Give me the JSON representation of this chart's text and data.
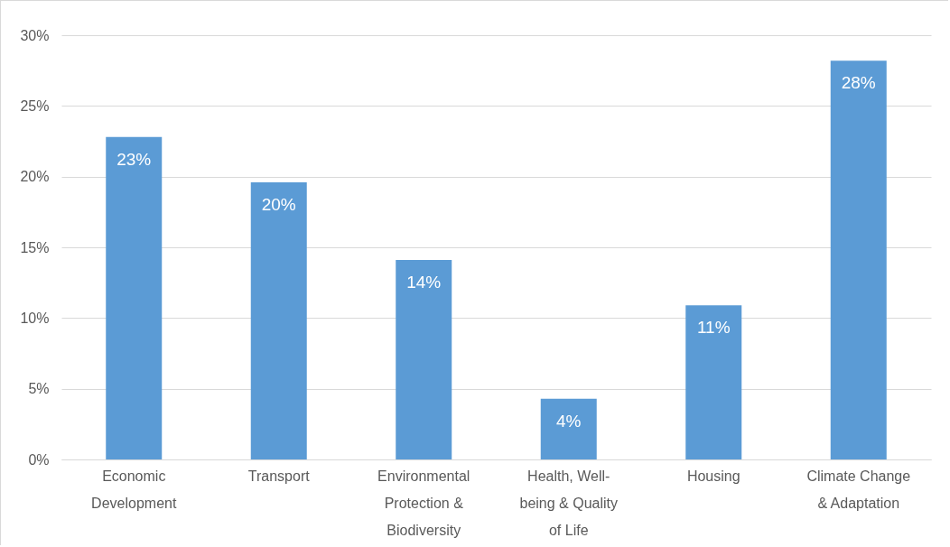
{
  "chart_data": {
    "type": "bar",
    "categories": [
      "Economic Development",
      "Transport",
      "Environmental Protection & Biodiversity",
      "Health, Well-being & Quality of Life",
      "Housing",
      "Climate Change & Adaptation"
    ],
    "values": [
      22.8,
      19.6,
      14.1,
      4.3,
      10.9,
      28.2
    ],
    "value_labels": [
      "23%",
      "20%",
      "14%",
      "4%",
      "11%",
      "28%"
    ],
    "color": "#5b9bd5",
    "ylim": [
      0,
      30
    ],
    "yticks": [
      {
        "value": 0,
        "label": "0%"
      },
      {
        "value": 5,
        "label": "5%"
      },
      {
        "value": 10,
        "label": "10%"
      },
      {
        "value": 15,
        "label": "15%"
      },
      {
        "value": 20,
        "label": "20%"
      },
      {
        "value": 25,
        "label": "25%"
      },
      {
        "value": 30,
        "label": "30%"
      }
    ],
    "grid": "y"
  }
}
